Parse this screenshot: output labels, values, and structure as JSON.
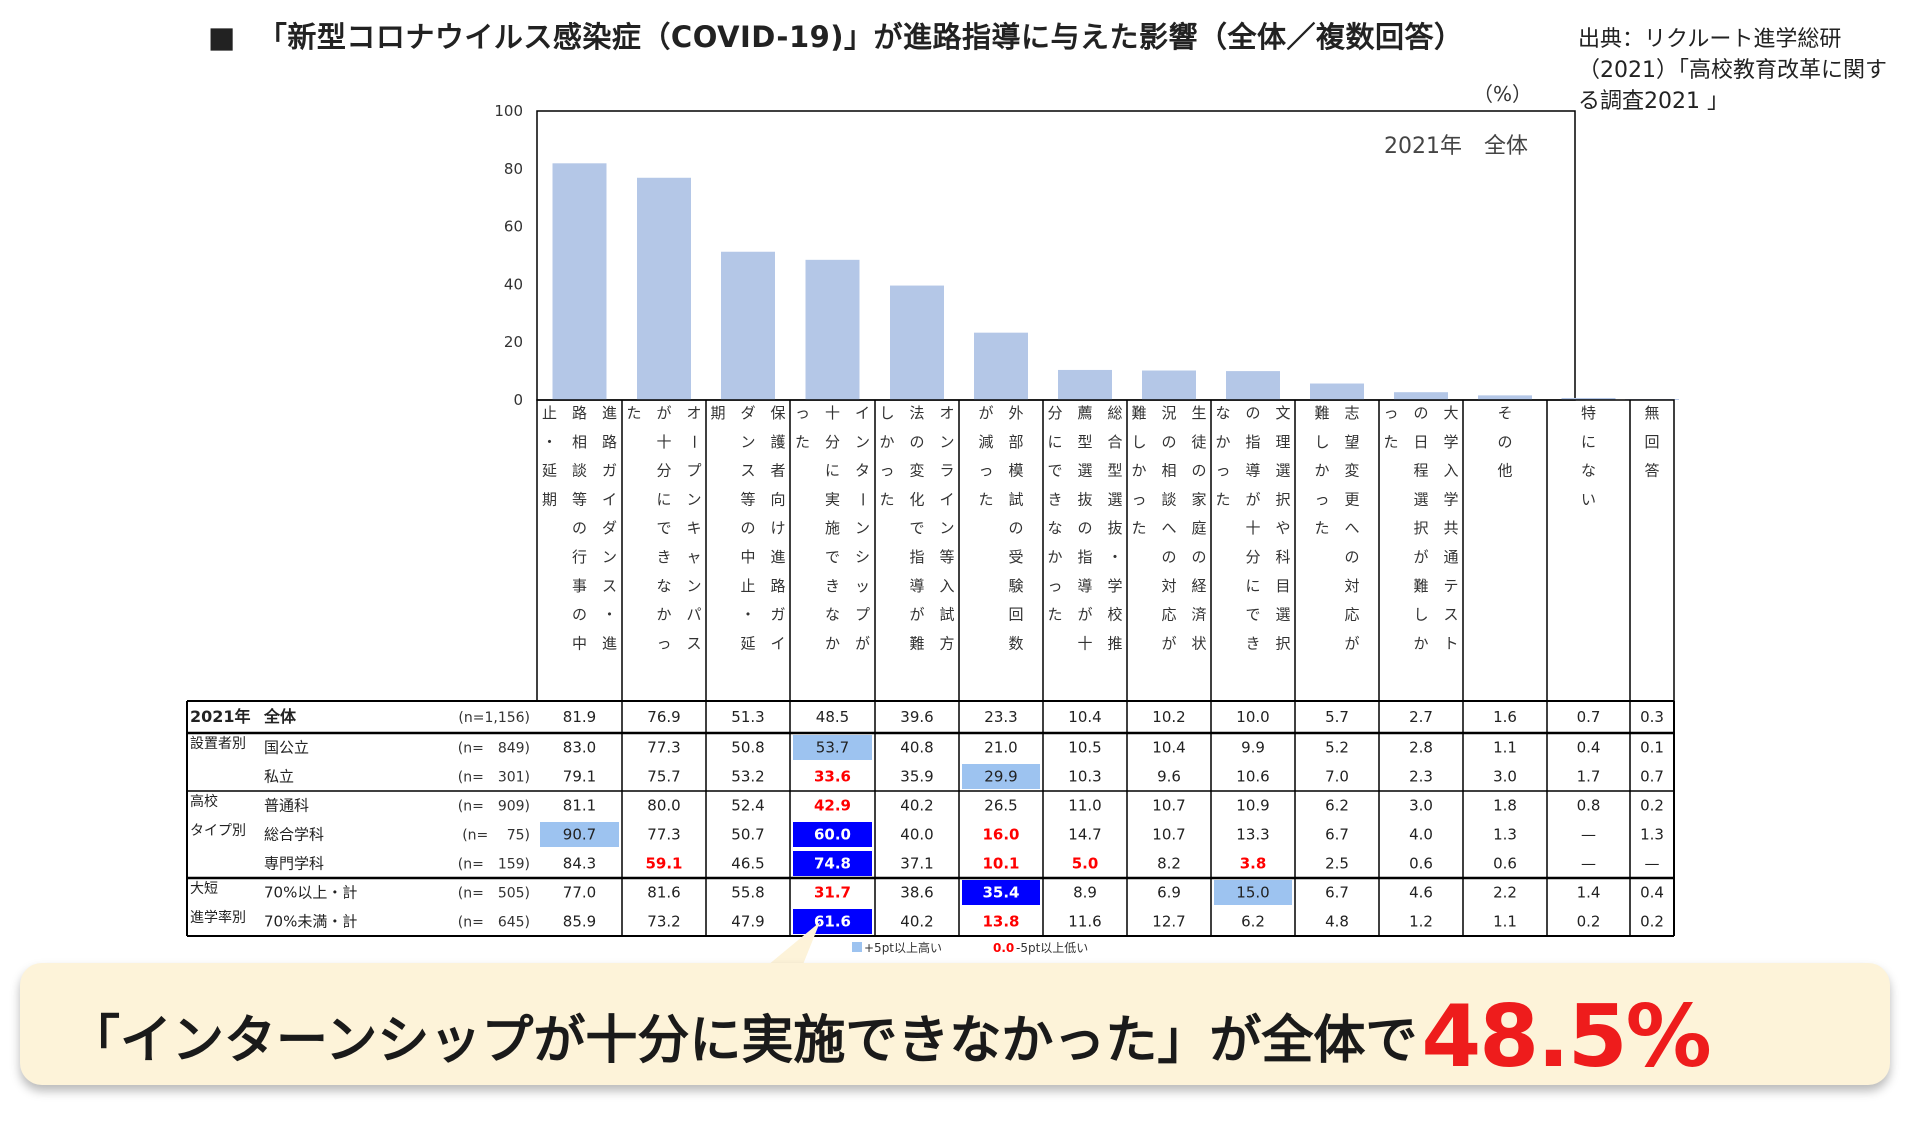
{
  "header": {
    "bullet": "■",
    "title": "「新型コロナウイルス感染症（COVID-19)」が進路指導に与えた影響（全体／複数回答）",
    "source": "出典：リクルート進学総研（2021）「高校教育改革に関する調査2021 」"
  },
  "chart_data": {
    "type": "bar",
    "title": "2021年　全体",
    "unit": "（%）",
    "ylim": [
      0,
      100
    ],
    "yticks": [
      0,
      20,
      40,
      60,
      80,
      100
    ],
    "categories": [
      "進路ガイダンス・進路相談等の行事の中止・延期",
      "オープンキャンパスが十分にできなかった",
      "保護者向け進路ガイダンス等の中止・延期",
      "インターンシップが十分に実施できなかった",
      "オンライン等入試方法の変化で指導が難しかった",
      "外部模試の受験回数が減った",
      "総合型選抜・学校推薦型選抜の指導が十分にできなかった",
      "生徒の家庭の経済状況の相談への対応が難しかった",
      "文理選択や科目選択の指導が十分にできなかった",
      "志望変更への対応が難しかった",
      "大学入学共通テストの日程選択が難しかった",
      "その他",
      "特にない",
      "無回答"
    ],
    "values": [
      81.9,
      76.9,
      51.3,
      48.5,
      39.6,
      23.3,
      10.4,
      10.2,
      10.0,
      5.7,
      2.7,
      1.6,
      0.7,
      0.3
    ],
    "bar_color": "#b4c7e7",
    "table": {
      "rows": [
        {
          "group": "2021年",
          "label": "全体",
          "n": "(n=1,156)",
          "values": [
            "81.9",
            "76.9",
            "51.3",
            "48.5",
            "39.6",
            "23.3",
            "10.4",
            "10.2",
            "10.0",
            "5.7",
            "2.7",
            "1.6",
            "0.7",
            "0.3"
          ],
          "marks": []
        },
        {
          "group": "設置者別",
          "label": "国公立",
          "n": "(n=　849)",
          "values": [
            "83.0",
            "77.3",
            "50.8",
            "53.7",
            "40.8",
            "21.0",
            "10.5",
            "10.4",
            "9.9",
            "5.2",
            "2.8",
            "1.1",
            "0.4",
            "0.1"
          ],
          "marks": [
            [
              3,
              "light"
            ]
          ]
        },
        {
          "group": "",
          "label": "私立",
          "n": "(n=　301)",
          "values": [
            "79.1",
            "75.7",
            "53.2",
            "33.6",
            "35.9",
            "29.9",
            "10.3",
            "9.6",
            "10.6",
            "7.0",
            "2.3",
            "3.0",
            "1.7",
            "0.7"
          ],
          "marks": [
            [
              3,
              "red"
            ],
            [
              5,
              "light"
            ]
          ]
        },
        {
          "group": "高校",
          "label": "普通科",
          "n": "(n=　909)",
          "values": [
            "81.1",
            "80.0",
            "52.4",
            "42.9",
            "40.2",
            "26.5",
            "11.0",
            "10.7",
            "10.9",
            "6.2",
            "3.0",
            "1.8",
            "0.8",
            "0.2"
          ],
          "marks": [
            [
              3,
              "red"
            ]
          ]
        },
        {
          "group": "タイプ別",
          "label": "総合学科",
          "n": "(n=　 75)",
          "values": [
            "90.7",
            "77.3",
            "50.7",
            "60.0",
            "40.0",
            "16.0",
            "14.7",
            "10.7",
            "13.3",
            "6.7",
            "4.0",
            "1.3",
            "—",
            "1.3"
          ],
          "marks": [
            [
              0,
              "light"
            ],
            [
              3,
              "dark"
            ],
            [
              5,
              "red"
            ]
          ]
        },
        {
          "group": "",
          "label": "専門学科",
          "n": "(n=　159)",
          "values": [
            "84.3",
            "59.1",
            "46.5",
            "74.8",
            "37.1",
            "10.1",
            "5.0",
            "8.2",
            "3.8",
            "2.5",
            "0.6",
            "0.6",
            "—",
            "—"
          ],
          "marks": [
            [
              1,
              "red"
            ],
            [
              3,
              "dark"
            ],
            [
              5,
              "red"
            ],
            [
              6,
              "red"
            ],
            [
              8,
              "red"
            ]
          ]
        },
        {
          "group": "大短",
          "label": "70%以上・計",
          "n": "(n=　505)",
          "values": [
            "77.0",
            "81.6",
            "55.8",
            "31.7",
            "38.6",
            "35.4",
            "8.9",
            "6.9",
            "15.0",
            "6.7",
            "4.6",
            "2.2",
            "1.4",
            "0.4"
          ],
          "marks": [
            [
              3,
              "red"
            ],
            [
              5,
              "dark"
            ],
            [
              8,
              "light"
            ]
          ]
        },
        {
          "group": "進学率別",
          "label": "70%未満・計",
          "n": "(n=　645)",
          "values": [
            "85.9",
            "73.2",
            "47.9",
            "61.6",
            "40.2",
            "13.8",
            "11.6",
            "12.7",
            "6.2",
            "4.8",
            "1.2",
            "1.1",
            "0.2",
            "0.2"
          ],
          "marks": [
            [
              3,
              "dark"
            ],
            [
              5,
              "red"
            ]
          ]
        }
      ],
      "legend_plus": "+5pt以上高い",
      "legend_minus_value": "0.0",
      "legend_minus": "-5pt以上低い"
    },
    "colors": {
      "light": "#9dc3f0",
      "dark": "#0000ff",
      "red": "#ff0000",
      "grid": "#000000"
    }
  },
  "callout": {
    "text": "「インターンシップが十分に実施できなかった」が全体で",
    "highlight": "48.5%",
    "bg": "#fdf3d9",
    "highlight_color": "#ee1c1c"
  }
}
